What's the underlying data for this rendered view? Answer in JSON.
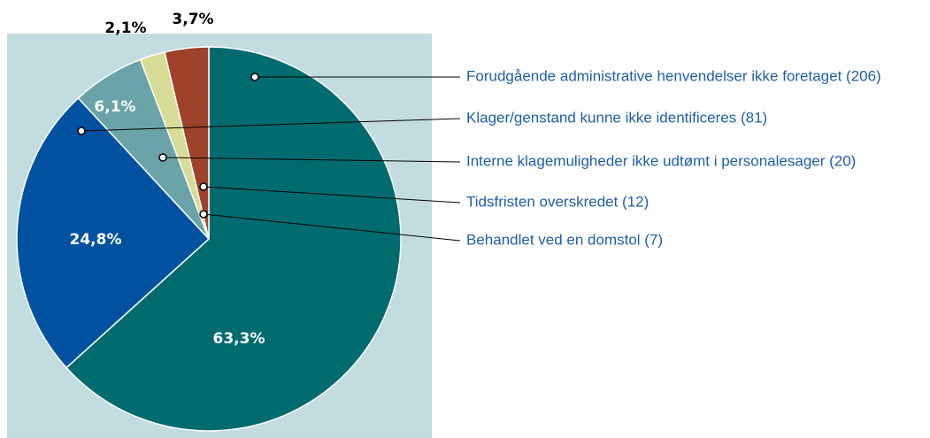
{
  "chart_data": {
    "type": "pie",
    "categories": [
      "Forudgående administrative henvendelser ikke foretaget (206)",
      "Klager/genstand kunne ikke identificeres (81)",
      "Interne klagemuligheder ikke udtømt i personalesager (20)",
      "Behandlet ved en domstol (7)",
      "Tidsfristen overskredet (12)"
    ],
    "values": [
      63.3,
      24.8,
      6.1,
      2.1,
      3.7
    ],
    "value_labels": [
      "63,3%",
      "24,8%",
      "6,1%",
      "2,1%",
      "3,7%"
    ],
    "colors": [
      "#006b6e",
      "#0052a0",
      "#6aa3a8",
      "#d7dc96",
      "#a0412a"
    ]
  }
}
